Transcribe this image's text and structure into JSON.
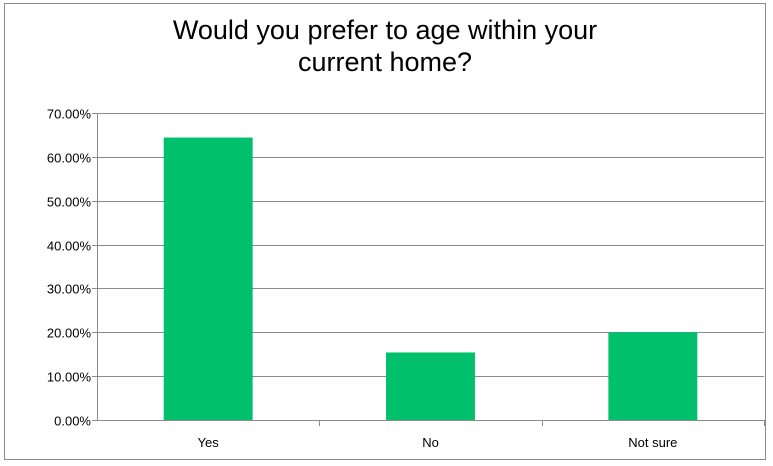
{
  "chart_data": {
    "type": "bar",
    "title_lines": [
      "Would you prefer to age within your",
      "current home?"
    ],
    "categories": [
      "Yes",
      "No",
      "Not sure"
    ],
    "values": [
      0.644,
      0.154,
      0.2
    ],
    "ylim": [
      0,
      0.7
    ],
    "yticks": [
      0,
      0.1,
      0.2,
      0.3,
      0.4,
      0.5,
      0.6,
      0.7
    ],
    "ytick_labels": [
      "0.00%",
      "10.00%",
      "20.00%",
      "30.00%",
      "40.00%",
      "50.00%",
      "60.00%",
      "70.00%"
    ],
    "bar_color": "#00c06b",
    "grid": true,
    "xlabel": "",
    "ylabel": ""
  }
}
